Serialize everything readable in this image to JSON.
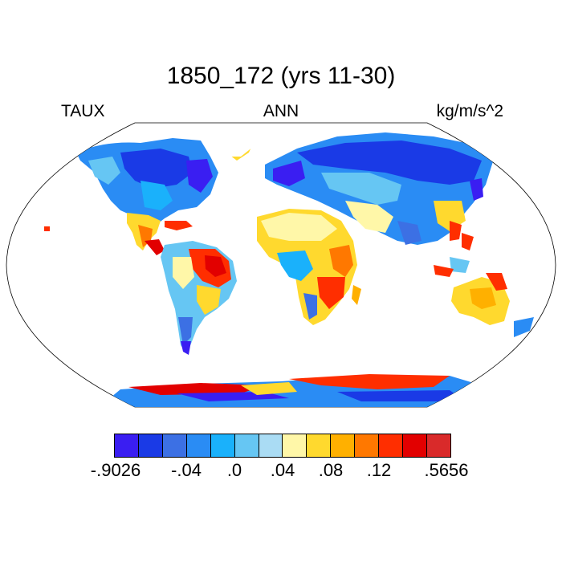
{
  "title": "1850_172 (yrs 11-30)",
  "left_label": "TAUX",
  "center_label": "ANN",
  "right_label": "kg/m/s^2",
  "colorbar": {
    "colors": [
      "#3a1ef2",
      "#1a3ae6",
      "#3c70e4",
      "#2a8cf4",
      "#1ab1fb",
      "#66c6f3",
      "#aadcf4",
      "#fff7a8",
      "#ffd92e",
      "#ffb000",
      "#ff7800",
      "#ff2e00",
      "#e20000",
      "#d92a2a"
    ],
    "tick_labels": [
      "-.9026",
      "-.04",
      ".0",
      ".04",
      ".08",
      ".12",
      ".5656"
    ]
  }
}
